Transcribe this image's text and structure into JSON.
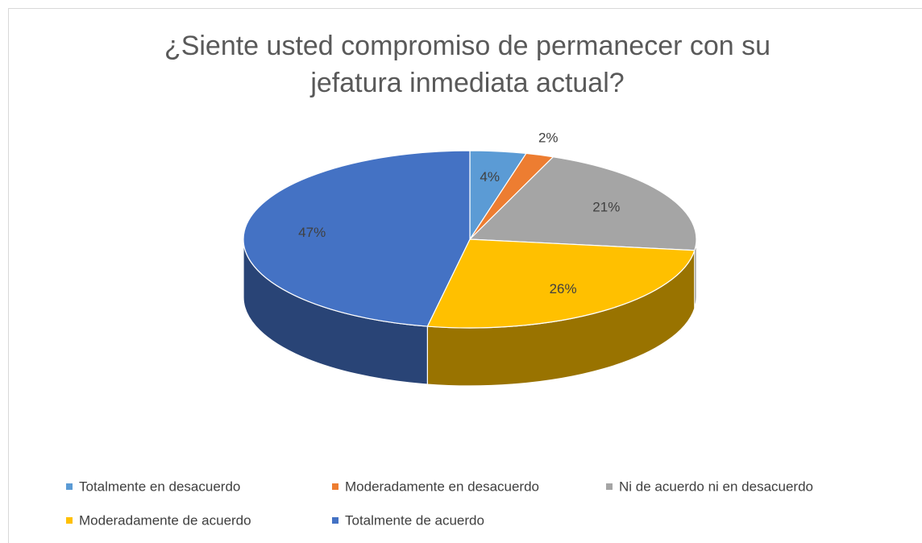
{
  "chart_data": {
    "type": "pie",
    "title": "¿Siente usted compromiso de permanecer con su jefatura inmediata actual?",
    "categories": [
      "Totalmente en desacuerdo",
      "Moderadamente en desacuerdo",
      "Ni de acuerdo ni en desacuerdo",
      "Moderadamente de acuerdo",
      "Totalmente de acuerdo"
    ],
    "values": [
      4,
      2,
      21,
      26,
      47
    ],
    "value_labels": [
      "4%",
      "2%",
      "21%",
      "26%",
      "47%"
    ],
    "colors": [
      "#5b9bd5",
      "#ed7d31",
      "#a5a5a5",
      "#ffc000",
      "#4472c4"
    ],
    "legend": "bottom"
  }
}
